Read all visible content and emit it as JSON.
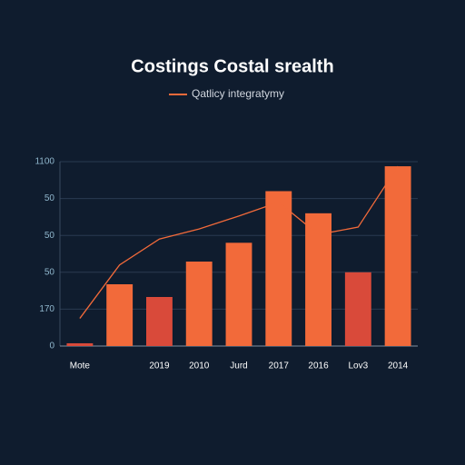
{
  "chart_data": {
    "type": "bar",
    "title": "Costings Costal srealth",
    "categories": [
      "Mote",
      null,
      "2019",
      "2010",
      "Jurd",
      "2017",
      "2016",
      "Lov3",
      "2014"
    ],
    "series": [
      {
        "values": [
          1.5,
          33.5,
          26.6,
          45.8,
          56,
          84,
          72,
          40,
          97.5
        ],
        "colors": [
          "#d94a3a",
          "#f26a3a",
          "#d94a3a",
          "#f26a3a",
          "#f26a3a",
          "#f26a3a",
          "#f26a3a",
          "#d94a3a",
          "#f26a3a"
        ]
      },
      {
        "name": "Qatlicy integratymy",
        "type": "line",
        "color": "#f26a3a",
        "values": [
          15,
          44,
          58,
          63.5,
          70.5,
          78,
          60.5,
          64.5,
          97.5
        ]
      }
    ],
    "ylim": [
      0,
      100
    ],
    "yticks": [
      0,
      {
        "value": 20,
        "label": "170"
      },
      {
        "value": 40,
        "label": "50"
      },
      {
        "value": 60,
        "label": "50"
      },
      {
        "value": 80,
        "label": "50"
      },
      {
        "value": 100,
        "label": "1100"
      }
    ],
    "grid": true
  }
}
